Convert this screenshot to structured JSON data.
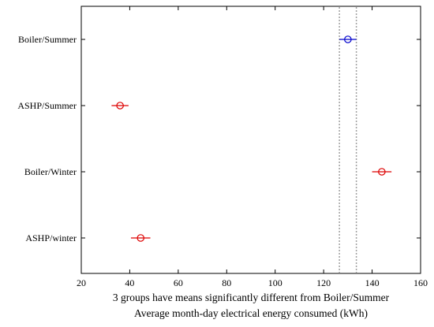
{
  "chart_data": {
    "type": "scatter",
    "subtype": "multiple-comparison-intervals",
    "categories": [
      "Boiler/Summer",
      "ASHP/Summer",
      "Boiler/Winter",
      "ASHP/winter"
    ],
    "series": [
      {
        "points": [
          {
            "category": "Boiler/Summer",
            "mean": 130,
            "lower": 126.5,
            "upper": 133.5,
            "color": "#0000cc"
          },
          {
            "category": "ASHP/Summer",
            "mean": 36,
            "lower": 32.5,
            "upper": 39.5,
            "color": "#dd0000"
          },
          {
            "category": "Boiler/Winter",
            "mean": 144,
            "lower": 140,
            "upper": 148,
            "color": "#dd0000"
          },
          {
            "category": "ASHP/winter",
            "mean": 44.5,
            "lower": 40.5,
            "upper": 48.5,
            "color": "#dd0000"
          }
        ]
      }
    ],
    "reference_lines": [
      126.5,
      133.5
    ],
    "xlim": [
      20,
      160
    ],
    "xticks": [
      20,
      40,
      60,
      80,
      100,
      120,
      140,
      160
    ],
    "xlabel_line1": "3 groups have means significantly different from Boiler/Summer",
    "xlabel_line2": "Average month-day electrical energy consumed (kWh)",
    "grid": false,
    "legend": "none",
    "colors": {
      "highlight": "#0000cc",
      "different": "#dd0000",
      "reference": "#a0a0a0"
    }
  }
}
